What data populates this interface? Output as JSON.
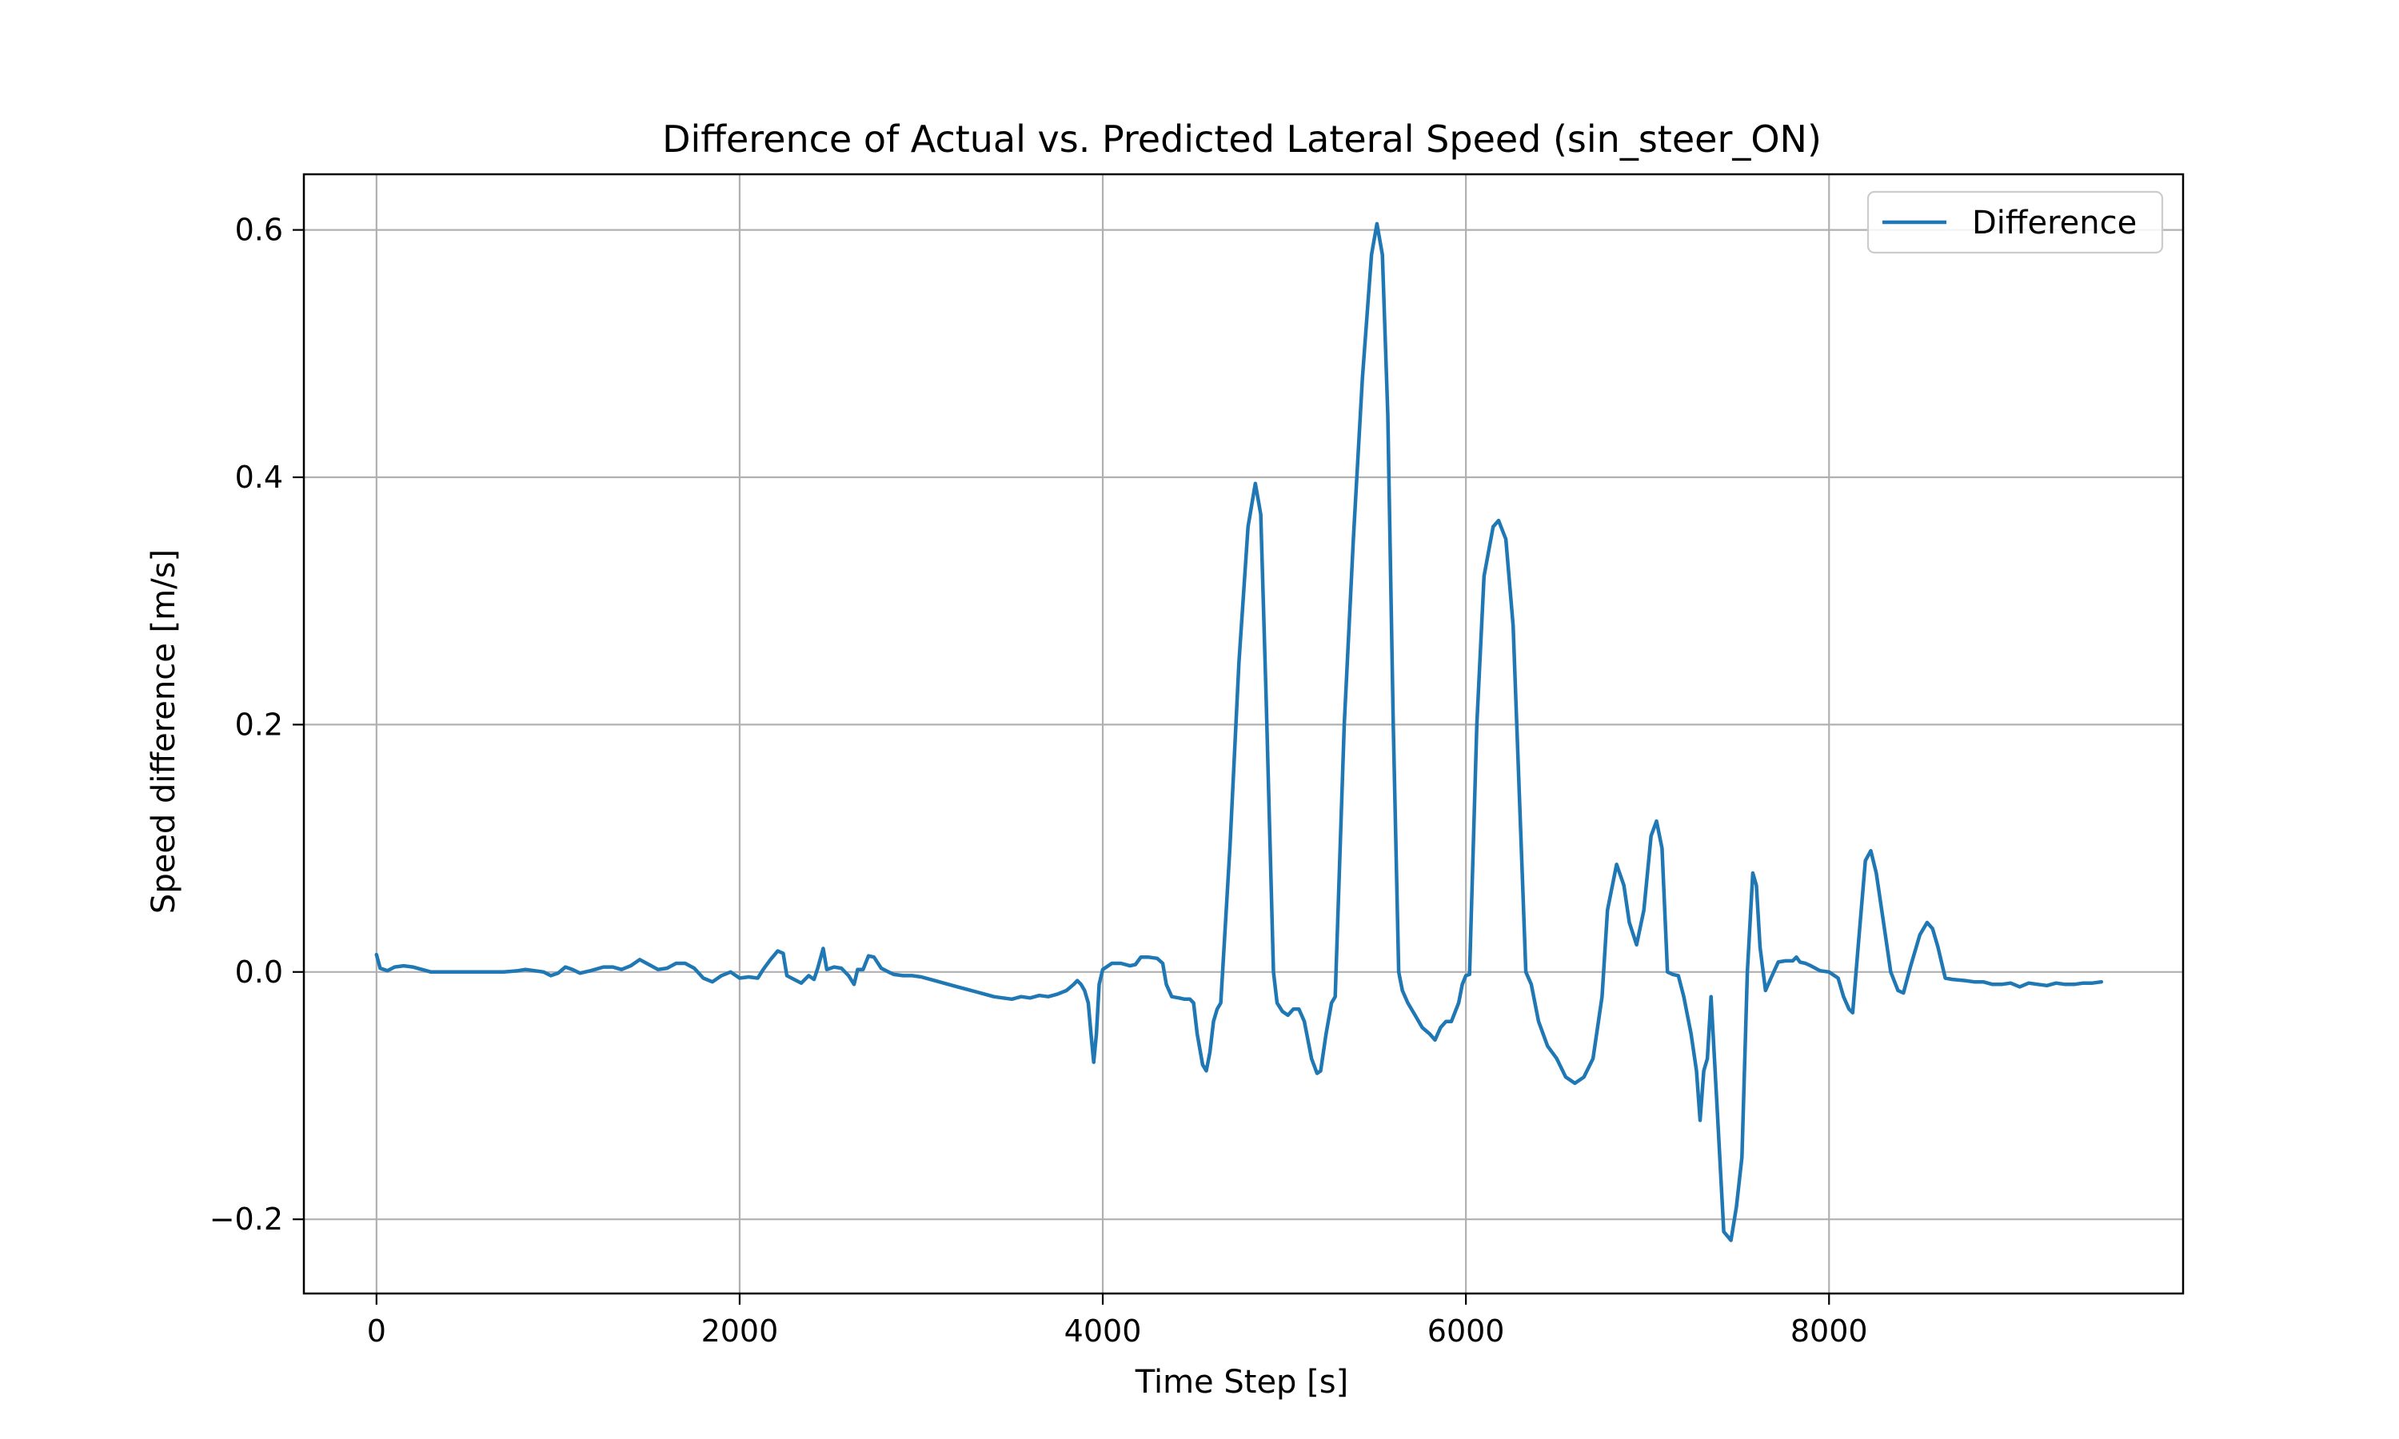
{
  "chart_data": {
    "type": "line",
    "title": "Difference of Actual vs. Predicted Lateral Speed (sin_steer_ON)",
    "xlabel": "Time Step [s]",
    "ylabel": "Speed difference [m/s]",
    "xlim": [
      -400,
      9950
    ],
    "ylim": [
      -0.26,
      0.645
    ],
    "xticks": [
      0,
      2000,
      4000,
      6000,
      8000
    ],
    "xtick_labels": [
      "0",
      "2000",
      "4000",
      "6000",
      "8000"
    ],
    "yticks": [
      -0.2,
      0.0,
      0.2,
      0.4,
      0.6
    ],
    "ytick_labels": [
      "−0.2",
      "0.0",
      "0.2",
      "0.4",
      "0.6"
    ],
    "grid": true,
    "legend": {
      "placement": "upper-right",
      "entries": [
        "Difference"
      ]
    },
    "series": [
      {
        "name": "Difference",
        "color": "#1f77b4",
        "points": [
          [
            0,
            0.014
          ],
          [
            20,
            0.003
          ],
          [
            60,
            0.001
          ],
          [
            100,
            0.004
          ],
          [
            150,
            0.005
          ],
          [
            200,
            0.004
          ],
          [
            250,
            0.002
          ],
          [
            300,
            0.0
          ],
          [
            400,
            0.0
          ],
          [
            500,
            0.0
          ],
          [
            600,
            0.0
          ],
          [
            700,
            0.0
          ],
          [
            780,
            0.001
          ],
          [
            820,
            0.002
          ],
          [
            870,
            0.001
          ],
          [
            920,
            0.0
          ],
          [
            960,
            -0.003
          ],
          [
            1000,
            -0.001
          ],
          [
            1040,
            0.004
          ],
          [
            1080,
            0.002
          ],
          [
            1120,
            -0.001
          ],
          [
            1180,
            0.001
          ],
          [
            1250,
            0.004
          ],
          [
            1300,
            0.004
          ],
          [
            1350,
            0.002
          ],
          [
            1400,
            0.005
          ],
          [
            1450,
            0.01
          ],
          [
            1500,
            0.006
          ],
          [
            1550,
            0.002
          ],
          [
            1600,
            0.003
          ],
          [
            1650,
            0.007
          ],
          [
            1700,
            0.007
          ],
          [
            1750,
            0.003
          ],
          [
            1800,
            -0.005
          ],
          [
            1850,
            -0.008
          ],
          [
            1900,
            -0.003
          ],
          [
            1950,
            0.0
          ],
          [
            2000,
            -0.005
          ],
          [
            2050,
            -0.004
          ],
          [
            2100,
            -0.005
          ],
          [
            2130,
            0.002
          ],
          [
            2170,
            0.01
          ],
          [
            2210,
            0.017
          ],
          [
            2240,
            0.015
          ],
          [
            2260,
            -0.003
          ],
          [
            2300,
            -0.006
          ],
          [
            2340,
            -0.009
          ],
          [
            2380,
            -0.003
          ],
          [
            2410,
            -0.006
          ],
          [
            2430,
            0.003
          ],
          [
            2460,
            0.019
          ],
          [
            2480,
            0.002
          ],
          [
            2520,
            0.004
          ],
          [
            2560,
            0.003
          ],
          [
            2600,
            -0.003
          ],
          [
            2630,
            -0.01
          ],
          [
            2650,
            0.002
          ],
          [
            2680,
            0.002
          ],
          [
            2710,
            0.013
          ],
          [
            2740,
            0.012
          ],
          [
            2780,
            0.003
          ],
          [
            2820,
            0.0
          ],
          [
            2850,
            -0.002
          ],
          [
            2900,
            -0.003
          ],
          [
            2950,
            -0.003
          ],
          [
            3000,
            -0.004
          ],
          [
            3050,
            -0.006
          ],
          [
            3100,
            -0.008
          ],
          [
            3150,
            -0.01
          ],
          [
            3200,
            -0.012
          ],
          [
            3250,
            -0.014
          ],
          [
            3300,
            -0.016
          ],
          [
            3350,
            -0.018
          ],
          [
            3400,
            -0.02
          ],
          [
            3450,
            -0.021
          ],
          [
            3500,
            -0.022
          ],
          [
            3550,
            -0.02
          ],
          [
            3600,
            -0.021
          ],
          [
            3650,
            -0.019
          ],
          [
            3700,
            -0.02
          ],
          [
            3750,
            -0.018
          ],
          [
            3800,
            -0.015
          ],
          [
            3840,
            -0.01
          ],
          [
            3860,
            -0.007
          ],
          [
            3880,
            -0.01
          ],
          [
            3900,
            -0.015
          ],
          [
            3920,
            -0.025
          ],
          [
            3935,
            -0.05
          ],
          [
            3950,
            -0.073
          ],
          [
            3965,
            -0.05
          ],
          [
            3980,
            -0.01
          ],
          [
            4000,
            0.002
          ],
          [
            4050,
            0.007
          ],
          [
            4100,
            0.007
          ],
          [
            4150,
            0.005
          ],
          [
            4180,
            0.006
          ],
          [
            4210,
            0.012
          ],
          [
            4250,
            0.012
          ],
          [
            4300,
            0.011
          ],
          [
            4330,
            0.007
          ],
          [
            4350,
            -0.01
          ],
          [
            4380,
            -0.02
          ],
          [
            4420,
            -0.021
          ],
          [
            4450,
            -0.022
          ],
          [
            4480,
            -0.022
          ],
          [
            4500,
            -0.025
          ],
          [
            4520,
            -0.05
          ],
          [
            4550,
            -0.075
          ],
          [
            4570,
            -0.08
          ],
          [
            4590,
            -0.065
          ],
          [
            4610,
            -0.04
          ],
          [
            4630,
            -0.03
          ],
          [
            4650,
            -0.025
          ],
          [
            4700,
            0.1
          ],
          [
            4750,
            0.25
          ],
          [
            4800,
            0.36
          ],
          [
            4840,
            0.395
          ],
          [
            4870,
            0.37
          ],
          [
            4900,
            0.22
          ],
          [
            4940,
            0.0
          ],
          [
            4960,
            -0.025
          ],
          [
            4990,
            -0.032
          ],
          [
            5020,
            -0.035
          ],
          [
            5050,
            -0.03
          ],
          [
            5080,
            -0.03
          ],
          [
            5110,
            -0.04
          ],
          [
            5150,
            -0.07
          ],
          [
            5180,
            -0.082
          ],
          [
            5200,
            -0.08
          ],
          [
            5230,
            -0.05
          ],
          [
            5260,
            -0.025
          ],
          [
            5280,
            -0.02
          ],
          [
            5330,
            0.2
          ],
          [
            5380,
            0.35
          ],
          [
            5430,
            0.48
          ],
          [
            5480,
            0.58
          ],
          [
            5510,
            0.605
          ],
          [
            5540,
            0.58
          ],
          [
            5570,
            0.45
          ],
          [
            5600,
            0.2
          ],
          [
            5630,
            0.0
          ],
          [
            5650,
            -0.015
          ],
          [
            5680,
            -0.025
          ],
          [
            5720,
            -0.035
          ],
          [
            5760,
            -0.045
          ],
          [
            5800,
            -0.05
          ],
          [
            5830,
            -0.055
          ],
          [
            5860,
            -0.045
          ],
          [
            5890,
            -0.04
          ],
          [
            5920,
            -0.04
          ],
          [
            5960,
            -0.025
          ],
          [
            5980,
            -0.01
          ],
          [
            6000,
            -0.003
          ],
          [
            6020,
            -0.002
          ],
          [
            6060,
            0.2
          ],
          [
            6100,
            0.32
          ],
          [
            6150,
            0.36
          ],
          [
            6180,
            0.365
          ],
          [
            6220,
            0.35
          ],
          [
            6260,
            0.28
          ],
          [
            6300,
            0.12
          ],
          [
            6330,
            0.0
          ],
          [
            6360,
            -0.01
          ],
          [
            6400,
            -0.04
          ],
          [
            6450,
            -0.06
          ],
          [
            6500,
            -0.07
          ],
          [
            6550,
            -0.085
          ],
          [
            6600,
            -0.09
          ],
          [
            6650,
            -0.085
          ],
          [
            6700,
            -0.07
          ],
          [
            6750,
            -0.02
          ],
          [
            6780,
            0.05
          ],
          [
            6830,
            0.087
          ],
          [
            6870,
            0.07
          ],
          [
            6900,
            0.04
          ],
          [
            6940,
            0.022
          ],
          [
            6980,
            0.05
          ],
          [
            7020,
            0.11
          ],
          [
            7050,
            0.122
          ],
          [
            7080,
            0.1
          ],
          [
            7110,
            0.0
          ],
          [
            7140,
            -0.002
          ],
          [
            7170,
            -0.003
          ],
          [
            7200,
            -0.02
          ],
          [
            7240,
            -0.05
          ],
          [
            7270,
            -0.08
          ],
          [
            7290,
            -0.12
          ],
          [
            7310,
            -0.08
          ],
          [
            7330,
            -0.07
          ],
          [
            7350,
            -0.02
          ],
          [
            7380,
            -0.1
          ],
          [
            7420,
            -0.21
          ],
          [
            7460,
            -0.217
          ],
          [
            7490,
            -0.19
          ],
          [
            7520,
            -0.15
          ],
          [
            7550,
            0.0
          ],
          [
            7580,
            0.08
          ],
          [
            7600,
            0.07
          ],
          [
            7620,
            0.02
          ],
          [
            7650,
            -0.015
          ],
          [
            7680,
            -0.005
          ],
          [
            7720,
            0.008
          ],
          [
            7760,
            0.009
          ],
          [
            7800,
            0.009
          ],
          [
            7820,
            0.012
          ],
          [
            7840,
            0.008
          ],
          [
            7870,
            0.007
          ],
          [
            7900,
            0.005
          ],
          [
            7950,
            0.001
          ],
          [
            8000,
            0.0
          ],
          [
            8050,
            -0.005
          ],
          [
            8080,
            -0.02
          ],
          [
            8110,
            -0.03
          ],
          [
            8130,
            -0.033
          ],
          [
            8160,
            0.02
          ],
          [
            8200,
            0.09
          ],
          [
            8230,
            0.098
          ],
          [
            8260,
            0.08
          ],
          [
            8300,
            0.04
          ],
          [
            8340,
            0.0
          ],
          [
            8380,
            -0.015
          ],
          [
            8410,
            -0.017
          ],
          [
            8450,
            0.005
          ],
          [
            8500,
            0.03
          ],
          [
            8540,
            0.04
          ],
          [
            8570,
            0.035
          ],
          [
            8600,
            0.02
          ],
          [
            8640,
            -0.005
          ],
          [
            8680,
            -0.006
          ],
          [
            8750,
            -0.007
          ],
          [
            8800,
            -0.008
          ],
          [
            8850,
            -0.008
          ],
          [
            8900,
            -0.01
          ],
          [
            8950,
            -0.01
          ],
          [
            9000,
            -0.009
          ],
          [
            9050,
            -0.012
          ],
          [
            9100,
            -0.009
          ],
          [
            9150,
            -0.01
          ],
          [
            9200,
            -0.011
          ],
          [
            9250,
            -0.009
          ],
          [
            9300,
            -0.01
          ],
          [
            9350,
            -0.01
          ],
          [
            9400,
            -0.009
          ],
          [
            9450,
            -0.009
          ],
          [
            9500,
            -0.008
          ]
        ]
      }
    ]
  }
}
